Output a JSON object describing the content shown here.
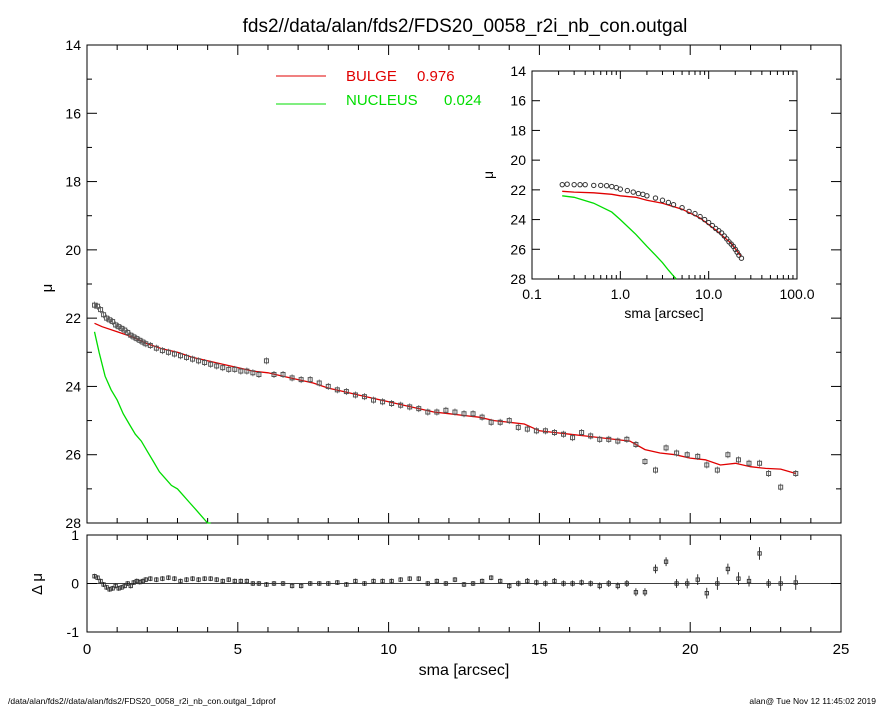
{
  "title": "fds2//data/alan/fds2/FDS20_0058_r2i_nb_con.outgal",
  "footer": {
    "left": "/data/alan/fds2//data/alan/fds2/FDS20_0058_r2i_nb_con.outgal_1dprof",
    "right": "alan@  Tue Nov 12 11:45:02 2019"
  },
  "colors": {
    "bulge": "#e00000",
    "nucleus": "#00dd00",
    "obs": "#555555",
    "axis": "#000000"
  },
  "chart_data": [
    {
      "id": "main",
      "type": "scatter",
      "xlabel": "",
      "ylabel": "μ",
      "xlim": [
        0,
        25
      ],
      "ylim": [
        28,
        14
      ],
      "y_reversed": true,
      "y_ticks": [
        14,
        16,
        18,
        20,
        22,
        24,
        26,
        28
      ],
      "legend": [
        {
          "name": "BULGE",
          "value": "0.976",
          "color": "#e00000"
        },
        {
          "name": "NUCLEUS",
          "value": "0.024",
          "color": "#00dd00"
        }
      ],
      "legend_position": "top-center",
      "series": [
        {
          "name": "BULGE",
          "kind": "line",
          "x": [
            0.25,
            0.5,
            1.0,
            1.5,
            2.0,
            2.5,
            3.0,
            3.5,
            4.0,
            4.5,
            5.0,
            5.5,
            6.0,
            6.5,
            7.0,
            7.5,
            8.0,
            8.5,
            9.0,
            9.5,
            10.0,
            10.5,
            11.0,
            11.5,
            12.0,
            12.5,
            13.0,
            13.5,
            14.0,
            14.5,
            15.0,
            15.5,
            16.0,
            16.5,
            17.0,
            17.5,
            18.0,
            18.5,
            19.0,
            19.5,
            20.0,
            20.5,
            21.0,
            21.5,
            22.0,
            22.5,
            23.0,
            23.5
          ],
          "values": [
            22.15,
            22.25,
            22.4,
            22.55,
            22.75,
            22.9,
            23.0,
            23.15,
            23.25,
            23.35,
            23.45,
            23.55,
            23.6,
            23.7,
            23.8,
            23.9,
            24.05,
            24.15,
            24.25,
            24.35,
            24.45,
            24.55,
            24.65,
            24.75,
            24.8,
            24.85,
            24.9,
            25.0,
            25.05,
            25.1,
            25.3,
            25.35,
            25.4,
            25.45,
            25.5,
            25.55,
            25.6,
            25.85,
            25.95,
            26.0,
            26.1,
            26.15,
            26.3,
            26.25,
            26.35,
            26.4,
            26.42,
            26.55
          ]
        },
        {
          "name": "NUCLEUS",
          "kind": "line",
          "x": [
            0.25,
            0.4,
            0.6,
            0.8,
            1.0,
            1.2,
            1.4,
            1.6,
            1.8,
            2.0,
            2.2,
            2.4,
            2.6,
            2.8,
            3.0,
            3.2,
            3.4,
            3.6,
            3.8,
            4.0,
            4.1
          ],
          "values": [
            22.4,
            23.0,
            23.7,
            24.1,
            24.4,
            24.8,
            25.1,
            25.4,
            25.6,
            25.9,
            26.2,
            26.5,
            26.7,
            26.9,
            27.0,
            27.2,
            27.4,
            27.6,
            27.8,
            28.0,
            28.1
          ]
        },
        {
          "name": "",
          "kind": "markers",
          "x": [
            0.25,
            0.35,
            0.45,
            0.55,
            0.65,
            0.75,
            0.85,
            0.95,
            1.05,
            1.15,
            1.25,
            1.35,
            1.45,
            1.55,
            1.65,
            1.75,
            1.85,
            1.95,
            2.1,
            2.3,
            2.5,
            2.7,
            2.9,
            3.1,
            3.3,
            3.5,
            3.7,
            3.9,
            4.1,
            4.3,
            4.5,
            4.7,
            4.9,
            5.1,
            5.3,
            5.5,
            5.7,
            5.95,
            6.2,
            6.5,
            6.8,
            7.1,
            7.4,
            7.7,
            8.0,
            8.3,
            8.6,
            8.9,
            9.2,
            9.5,
            9.8,
            10.1,
            10.4,
            10.7,
            11.0,
            11.3,
            11.6,
            11.9,
            12.2,
            12.5,
            12.8,
            13.1,
            13.4,
            13.7,
            14.0,
            14.3,
            14.6,
            14.9,
            15.2,
            15.5,
            15.8,
            16.1,
            16.4,
            16.7,
            17.0,
            17.3,
            17.6,
            17.9,
            18.2,
            18.5,
            18.85,
            19.2,
            19.55,
            19.9,
            20.25,
            20.55,
            20.9,
            21.25,
            21.6,
            21.95,
            22.3,
            22.6,
            23.0,
            23.5
          ],
          "values": [
            21.62,
            21.65,
            21.75,
            21.9,
            22.0,
            22.05,
            22.1,
            22.2,
            22.25,
            22.3,
            22.35,
            22.42,
            22.5,
            22.55,
            22.6,
            22.65,
            22.7,
            22.75,
            22.8,
            22.88,
            22.95,
            23.0,
            23.05,
            23.1,
            23.15,
            23.2,
            23.25,
            23.3,
            23.35,
            23.4,
            23.45,
            23.5,
            23.5,
            23.55,
            23.55,
            23.6,
            23.65,
            23.25,
            23.65,
            23.65,
            23.75,
            23.8,
            23.8,
            23.9,
            24.0,
            24.1,
            24.15,
            24.25,
            24.3,
            24.4,
            24.45,
            24.5,
            24.55,
            24.6,
            24.65,
            24.75,
            24.75,
            24.7,
            24.75,
            24.8,
            24.8,
            24.9,
            25.05,
            25.05,
            25.0,
            25.2,
            25.25,
            25.3,
            25.3,
            25.35,
            25.4,
            25.5,
            25.35,
            25.45,
            25.55,
            25.55,
            25.6,
            25.55,
            25.7,
            26.2,
            26.45,
            25.8,
            25.95,
            26.0,
            26.05,
            26.3,
            26.45,
            26.0,
            26.15,
            26.25,
            26.25,
            26.55,
            26.95,
            26.55
          ]
        }
      ]
    },
    {
      "id": "inset",
      "type": "scatter",
      "xlabel": "sma [arcsec]",
      "ylabel": "μ",
      "x_scale": "log",
      "xlim": [
        0.1,
        100.0
      ],
      "x_ticks": [
        "0.1",
        "1.0",
        "10.0",
        "100.0"
      ],
      "ylim": [
        28,
        14
      ],
      "y_reversed": true,
      "y_ticks": [
        14,
        16,
        18,
        20,
        22,
        24,
        26,
        28
      ],
      "series": [
        {
          "name": "BULGE",
          "kind": "line",
          "x": [
            0.22,
            0.3,
            0.5,
            0.8,
            1.0,
            1.5,
            2.0,
            3.0,
            5.0,
            8.0,
            12.0,
            18.0,
            23.5
          ],
          "values": [
            22.1,
            22.15,
            22.2,
            22.3,
            22.4,
            22.5,
            22.7,
            22.9,
            23.3,
            23.9,
            24.7,
            25.6,
            26.5
          ]
        },
        {
          "name": "NUCLEUS",
          "kind": "line",
          "x": [
            0.22,
            0.3,
            0.5,
            0.8,
            1.0,
            1.5,
            2.0,
            2.5,
            3.0,
            3.5,
            4.0,
            4.3
          ],
          "values": [
            22.4,
            22.5,
            22.9,
            23.5,
            24.0,
            25.0,
            25.8,
            26.4,
            26.9,
            27.4,
            27.8,
            28.0
          ]
        },
        {
          "name": "",
          "kind": "markers",
          "x": [
            0.22,
            0.25,
            0.3,
            0.35,
            0.4,
            0.5,
            0.6,
            0.7,
            0.8,
            0.9,
            1.0,
            1.2,
            1.4,
            1.6,
            1.8,
            2.0,
            2.5,
            3.0,
            3.5,
            4.0,
            5.0,
            6.0,
            7.0,
            8.0,
            9.0,
            10.0,
            11.0,
            12.0,
            13.0,
            14.0,
            15.0,
            16.0,
            17.0,
            18.0,
            19.0,
            20.0,
            21.0,
            22.0,
            23.5
          ],
          "values": [
            21.65,
            21.62,
            21.65,
            21.65,
            21.65,
            21.7,
            21.7,
            21.72,
            21.78,
            21.85,
            21.95,
            22.05,
            22.15,
            22.25,
            22.3,
            22.4,
            22.55,
            22.7,
            22.85,
            23.0,
            23.2,
            23.45,
            23.6,
            23.8,
            24.0,
            24.2,
            24.4,
            24.6,
            24.75,
            24.9,
            25.1,
            25.3,
            25.5,
            25.65,
            25.8,
            26.0,
            26.2,
            26.4,
            26.6
          ]
        }
      ]
    },
    {
      "id": "residual",
      "type": "scatter",
      "xlabel": "sma [arcsec]",
      "ylabel": "Δ μ",
      "xlim": [
        0,
        25
      ],
      "x_ticks": [
        0,
        5,
        10,
        15,
        20,
        25
      ],
      "ylim": [
        -1,
        1
      ],
      "y_ticks": [
        "1",
        "0",
        "-1"
      ],
      "series": [
        {
          "name": "",
          "kind": "errorbars",
          "x": [
            0.25,
            0.35,
            0.45,
            0.55,
            0.65,
            0.75,
            0.85,
            0.95,
            1.05,
            1.15,
            1.25,
            1.35,
            1.45,
            1.55,
            1.65,
            1.75,
            1.85,
            1.95,
            2.1,
            2.3,
            2.5,
            2.7,
            2.9,
            3.1,
            3.3,
            3.5,
            3.7,
            3.9,
            4.1,
            4.3,
            4.5,
            4.7,
            4.9,
            5.1,
            5.3,
            5.5,
            5.7,
            5.95,
            6.2,
            6.5,
            6.8,
            7.1,
            7.4,
            7.7,
            8.0,
            8.3,
            8.6,
            8.9,
            9.2,
            9.5,
            9.8,
            10.1,
            10.4,
            10.7,
            11.0,
            11.3,
            11.6,
            11.9,
            12.2,
            12.5,
            12.8,
            13.1,
            13.4,
            13.7,
            14.0,
            14.3,
            14.6,
            14.9,
            15.2,
            15.5,
            15.8,
            16.1,
            16.4,
            16.7,
            17.0,
            17.3,
            17.6,
            17.9,
            18.2,
            18.5,
            18.85,
            19.2,
            19.55,
            19.9,
            20.25,
            20.55,
            20.9,
            21.25,
            21.6,
            21.95,
            22.3,
            22.6,
            23.0,
            23.5
          ],
          "values": [
            0.15,
            0.12,
            0.05,
            -0.02,
            -0.08,
            -0.12,
            -0.1,
            -0.05,
            -0.1,
            -0.08,
            -0.05,
            0.0,
            -0.05,
            0.02,
            0.05,
            0.03,
            0.05,
            0.08,
            0.1,
            0.08,
            0.1,
            0.12,
            0.1,
            0.05,
            0.08,
            0.1,
            0.08,
            0.1,
            0.1,
            0.08,
            0.05,
            0.08,
            0.05,
            0.05,
            0.05,
            0.0,
            0.0,
            -0.02,
            0.0,
            0.0,
            -0.05,
            -0.05,
            0.0,
            0.0,
            0.0,
            0.02,
            -0.02,
            0.05,
            0.0,
            0.05,
            0.05,
            0.05,
            0.08,
            0.1,
            0.1,
            0.0,
            0.05,
            0.0,
            0.08,
            -0.02,
            0.0,
            0.05,
            0.12,
            0.05,
            -0.05,
            0.0,
            0.05,
            0.02,
            0.0,
            0.05,
            0.0,
            0.0,
            0.02,
            0.0,
            -0.05,
            0.0,
            -0.05,
            0.0,
            -0.18,
            -0.18,
            0.3,
            0.45,
            0.0,
            0.0,
            0.08,
            -0.2,
            0.0,
            0.3,
            0.1,
            0.05,
            0.62,
            0.0,
            0.0,
            0.02
          ],
          "errors": [
            0.02,
            0.02,
            0.02,
            0.02,
            0.02,
            0.02,
            0.02,
            0.02,
            0.02,
            0.02,
            0.02,
            0.02,
            0.02,
            0.02,
            0.02,
            0.02,
            0.02,
            0.02,
            0.02,
            0.02,
            0.02,
            0.02,
            0.02,
            0.02,
            0.02,
            0.02,
            0.02,
            0.02,
            0.02,
            0.02,
            0.02,
            0.02,
            0.02,
            0.02,
            0.02,
            0.02,
            0.02,
            0.02,
            0.02,
            0.02,
            0.02,
            0.02,
            0.02,
            0.02,
            0.02,
            0.02,
            0.02,
            0.02,
            0.02,
            0.02,
            0.02,
            0.02,
            0.02,
            0.02,
            0.02,
            0.02,
            0.02,
            0.02,
            0.02,
            0.02,
            0.02,
            0.02,
            0.02,
            0.02,
            0.03,
            0.03,
            0.03,
            0.03,
            0.03,
            0.03,
            0.03,
            0.03,
            0.03,
            0.03,
            0.04,
            0.04,
            0.04,
            0.04,
            0.05,
            0.05,
            0.06,
            0.06,
            0.06,
            0.07,
            0.08,
            0.08,
            0.1,
            0.08,
            0.1,
            0.08,
            0.1,
            0.06,
            0.12,
            0.12
          ]
        }
      ]
    }
  ]
}
